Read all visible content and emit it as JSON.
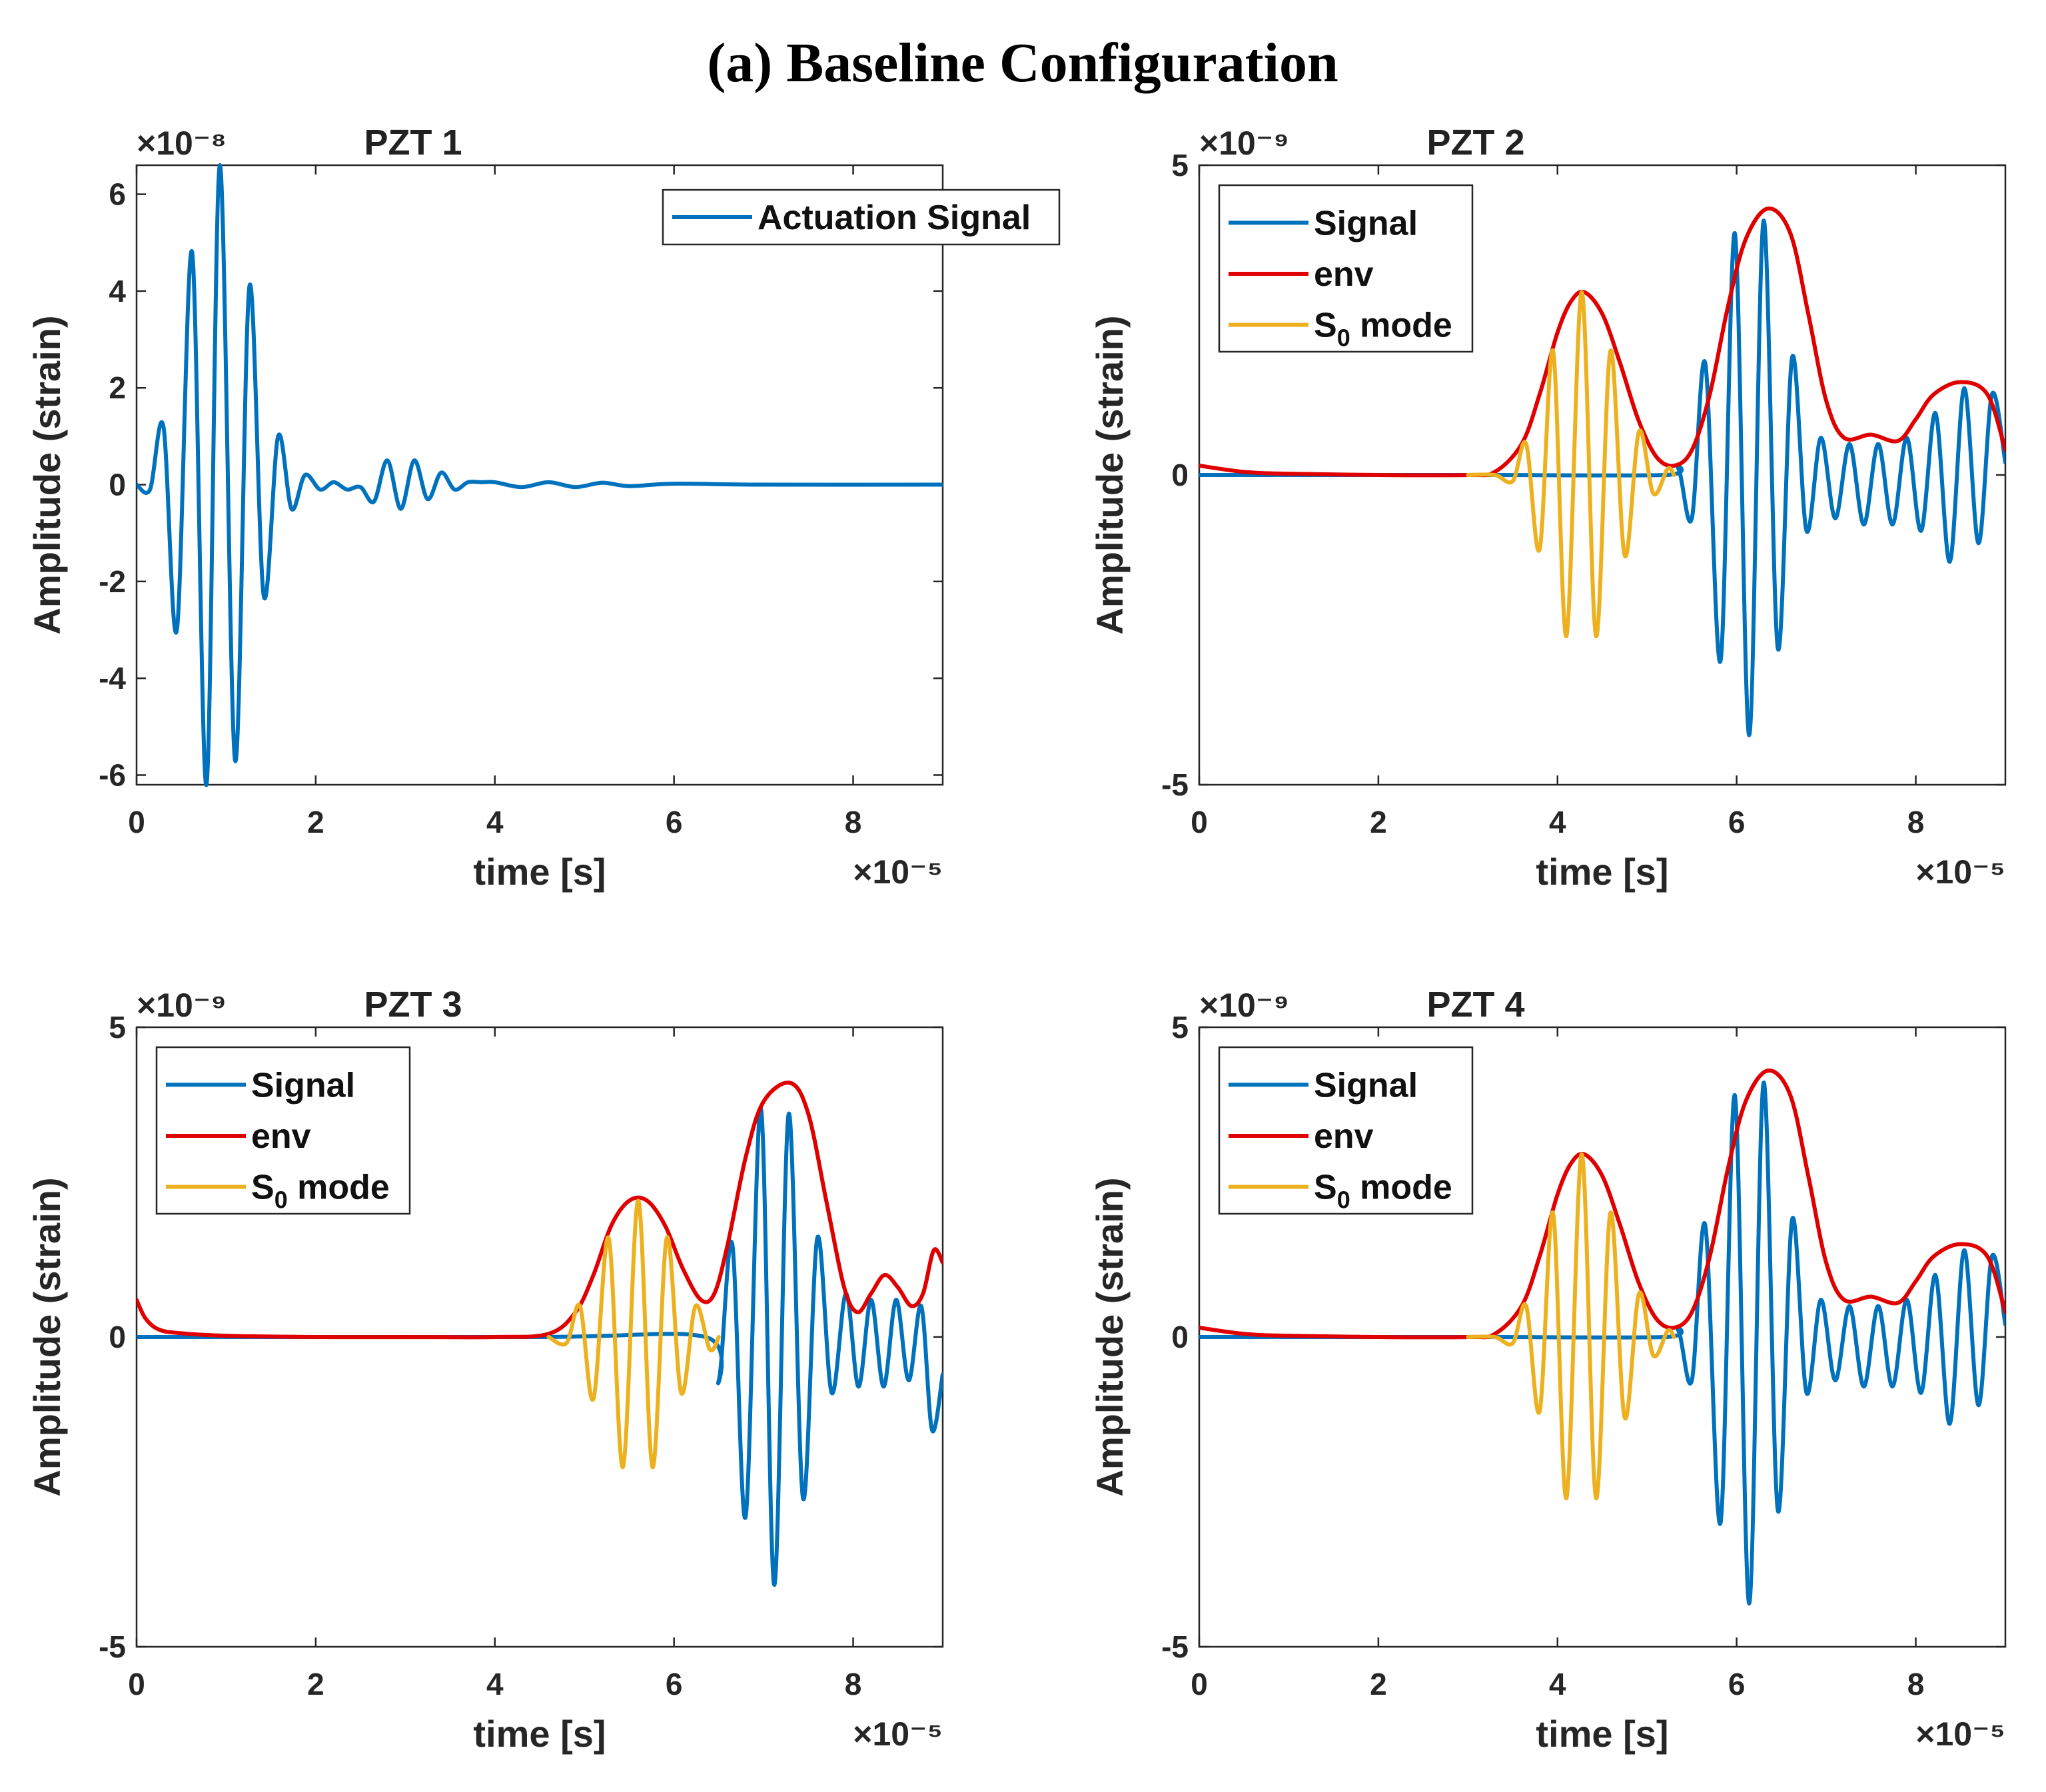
{
  "figure_title": "(a) Baseline Configuration",
  "colors": {
    "signal": "#0072BD",
    "env": "#E00000",
    "s0": "#EDB120",
    "axis": "#262626"
  },
  "chart_data": [
    {
      "type": "line",
      "title": "PZT 1",
      "xlabel": "time [s]",
      "ylabel": "Amplitude (strain)",
      "x_multiplier": "×10⁻⁵",
      "y_multiplier": "×10⁻⁸",
      "xlim": [
        0,
        9
      ],
      "ylim": [
        -6.2,
        6.6
      ],
      "xticks": [
        0,
        2,
        4,
        6,
        8
      ],
      "yticks": [
        -6,
        -4,
        -2,
        0,
        2,
        4,
        6
      ],
      "legend": {
        "position": "top-right",
        "entries": [
          "Actuation Signal"
        ]
      },
      "series": [
        {
          "name": "Actuation Signal",
          "color": "signal",
          "x": [
            0,
            0.15,
            0.3,
            0.45,
            0.62,
            0.78,
            0.93,
            1.1,
            1.26,
            1.42,
            1.58,
            1.73,
            1.88,
            2.05,
            2.2,
            2.35,
            2.5,
            2.65,
            2.8,
            2.95,
            3.1,
            3.25,
            3.4,
            3.55,
            3.7,
            3.85,
            4.0,
            4.3,
            4.6,
            4.9,
            5.2,
            5.5,
            6.0,
            7.0,
            9.0
          ],
          "y": [
            0.0,
            -0.1,
            1.2,
            -3.0,
            4.8,
            -6.2,
            6.6,
            -5.7,
            4.1,
            -2.3,
            1.0,
            -0.5,
            0.2,
            -0.1,
            0.05,
            -0.1,
            -0.05,
            -0.35,
            0.5,
            -0.5,
            0.5,
            -0.3,
            0.25,
            -0.1,
            0.05,
            0.05,
            0.05,
            -0.05,
            0.05,
            -0.05,
            0.04,
            -0.03,
            0.02,
            0.0,
            0.0
          ]
        }
      ]
    },
    {
      "type": "line",
      "title": "PZT 2",
      "xlabel": "time [s]",
      "ylabel": "Amplitude (strain)",
      "x_multiplier": "×10⁻⁵",
      "y_multiplier": "×10⁻⁹",
      "xlim": [
        0,
        9
      ],
      "ylim": [
        -5,
        5
      ],
      "xticks": [
        0,
        2,
        4,
        6,
        8
      ],
      "yticks": [
        -5,
        0,
        5
      ],
      "legend": {
        "position": "top-left",
        "entries": [
          "Signal",
          "env",
          "S0 mode"
        ]
      },
      "series": [
        {
          "name": "Signal",
          "color": "signal",
          "x": [
            0,
            3.0,
            3.3,
            5.2,
            5.35,
            5.5,
            5.65,
            5.82,
            5.98,
            6.14,
            6.3,
            6.46,
            6.62,
            6.78,
            6.94,
            7.1,
            7.26,
            7.42,
            7.58,
            7.74,
            7.9,
            8.06,
            8.22,
            8.38,
            8.54,
            8.7,
            8.85,
            9.0
          ],
          "y": [
            0.0,
            0.0,
            0.0,
            0.0,
            0.1,
            -0.7,
            1.8,
            -3.0,
            3.9,
            -4.2,
            4.1,
            -2.8,
            1.9,
            -0.9,
            0.6,
            -0.7,
            0.5,
            -0.8,
            0.5,
            -0.8,
            0.6,
            -0.9,
            1.0,
            -1.4,
            1.4,
            -1.1,
            1.3,
            0.2
          ]
        },
        {
          "name": "env",
          "color": "env",
          "x": [
            0,
            0.5,
            1.0,
            2.0,
            3.0,
            3.3,
            3.6,
            3.8,
            4.0,
            4.15,
            4.3,
            4.5,
            4.7,
            4.9,
            5.1,
            5.3,
            5.5,
            5.7,
            5.9,
            6.1,
            6.35,
            6.6,
            6.8,
            7.0,
            7.2,
            7.5,
            7.8,
            8.0,
            8.2,
            8.5,
            8.8,
            9.0
          ],
          "y": [
            0.15,
            0.05,
            0.02,
            0.0,
            0.0,
            0.05,
            0.5,
            1.3,
            2.3,
            2.8,
            2.95,
            2.6,
            1.8,
            0.9,
            0.3,
            0.15,
            0.4,
            1.3,
            2.7,
            3.8,
            4.3,
            3.9,
            2.6,
            1.2,
            0.6,
            0.65,
            0.55,
            0.9,
            1.3,
            1.5,
            1.3,
            0.4
          ]
        },
        {
          "name": "S0 mode",
          "color": "s0",
          "x": [
            3.0,
            3.3,
            3.5,
            3.65,
            3.8,
            3.95,
            4.1,
            4.27,
            4.43,
            4.59,
            4.75,
            4.91,
            5.07,
            5.23,
            5.3
          ],
          "y": [
            0.0,
            0.0,
            -0.1,
            0.5,
            -1.2,
            2.0,
            -2.6,
            2.95,
            -2.6,
            2.0,
            -1.3,
            0.7,
            -0.3,
            0.1,
            0.0
          ]
        }
      ]
    },
    {
      "type": "line",
      "title": "PZT 3",
      "xlabel": "time [s]",
      "ylabel": "Amplitude (strain)",
      "x_multiplier": "×10⁻⁵",
      "y_multiplier": "×10⁻⁹",
      "xlim": [
        0,
        9
      ],
      "ylim": [
        -5,
        5
      ],
      "xticks": [
        0,
        2,
        4,
        6,
        8
      ],
      "yticks": [
        -5,
        0,
        5
      ],
      "legend": {
        "position": "top-left",
        "entries": [
          "Signal",
          "env",
          "S0 mode"
        ]
      },
      "series": [
        {
          "name": "Signal",
          "color": "signal",
          "x": [
            0,
            4.5,
            6.35,
            6.5,
            6.65,
            6.8,
            6.97,
            7.12,
            7.28,
            7.44,
            7.6,
            7.76,
            7.92,
            8.06,
            8.2,
            8.34,
            8.48,
            8.62,
            8.76,
            8.88,
            9.0
          ],
          "y": [
            0.0,
            0.0,
            0.0,
            -0.7,
            1.5,
            -2.9,
            3.7,
            -4.0,
            3.6,
            -2.6,
            1.6,
            -0.9,
            0.7,
            -0.8,
            0.6,
            -0.8,
            0.6,
            -0.7,
            0.5,
            -1.5,
            -0.6
          ]
        },
        {
          "name": "env",
          "color": "env",
          "x": [
            0,
            0.1,
            0.25,
            0.5,
            1.0,
            2.0,
            3.0,
            4.0,
            4.6,
            4.9,
            5.1,
            5.3,
            5.5,
            5.7,
            5.9,
            6.1,
            6.3,
            6.45,
            6.6,
            6.8,
            7.0,
            7.3,
            7.5,
            7.7,
            7.9,
            8.05,
            8.2,
            8.35,
            8.5,
            8.65,
            8.78,
            8.9,
            9.0
          ],
          "y": [
            0.6,
            0.3,
            0.12,
            0.06,
            0.02,
            0.0,
            0.0,
            0.0,
            0.05,
            0.4,
            1.0,
            1.8,
            2.2,
            2.2,
            1.8,
            1.1,
            0.6,
            0.7,
            1.5,
            2.9,
            3.8,
            4.1,
            3.6,
            2.2,
            0.8,
            0.4,
            0.7,
            1.0,
            0.8,
            0.5,
            0.7,
            1.4,
            1.2
          ]
        },
        {
          "name": "S0 mode",
          "color": "s0",
          "x": [
            4.6,
            4.8,
            4.95,
            5.1,
            5.27,
            5.43,
            5.6,
            5.76,
            5.92,
            6.08,
            6.24,
            6.4,
            6.5
          ],
          "y": [
            0.0,
            -0.1,
            0.5,
            -1.0,
            1.6,
            -2.1,
            2.2,
            -2.1,
            1.6,
            -0.9,
            0.5,
            -0.2,
            0.0
          ]
        }
      ]
    },
    {
      "type": "line",
      "title": "PZT 4",
      "xlabel": "time [s]",
      "ylabel": "Amplitude (strain)",
      "x_multiplier": "×10⁻⁵",
      "y_multiplier": "×10⁻⁹",
      "xlim": [
        0,
        9
      ],
      "ylim": [
        -5,
        5
      ],
      "xticks": [
        0,
        2,
        4,
        6,
        8
      ],
      "yticks": [
        -5,
        0,
        5
      ],
      "legend": {
        "position": "top-left",
        "entries": [
          "Signal",
          "env",
          "S0 mode"
        ]
      },
      "series": [
        {
          "name": "Signal",
          "color": "signal",
          "x": [
            0,
            3.0,
            3.3,
            5.2,
            5.35,
            5.5,
            5.65,
            5.82,
            5.98,
            6.14,
            6.3,
            6.46,
            6.62,
            6.78,
            6.94,
            7.1,
            7.26,
            7.42,
            7.58,
            7.74,
            7.9,
            8.06,
            8.22,
            8.38,
            8.54,
            8.7,
            8.85,
            9.0
          ],
          "y": [
            0.0,
            0.0,
            0.0,
            0.0,
            0.1,
            -0.7,
            1.8,
            -3.0,
            3.9,
            -4.3,
            4.1,
            -2.8,
            1.9,
            -0.9,
            0.6,
            -0.7,
            0.5,
            -0.8,
            0.5,
            -0.8,
            0.6,
            -0.9,
            1.0,
            -1.4,
            1.4,
            -1.1,
            1.3,
            0.2
          ]
        },
        {
          "name": "env",
          "color": "env",
          "x": [
            0,
            0.5,
            1.0,
            2.0,
            3.0,
            3.3,
            3.6,
            3.8,
            4.0,
            4.15,
            4.3,
            4.5,
            4.7,
            4.9,
            5.1,
            5.3,
            5.5,
            5.7,
            5.9,
            6.1,
            6.35,
            6.6,
            6.8,
            7.0,
            7.2,
            7.5,
            7.8,
            8.0,
            8.2,
            8.5,
            8.8,
            9.0
          ],
          "y": [
            0.15,
            0.05,
            0.02,
            0.0,
            0.0,
            0.05,
            0.5,
            1.3,
            2.3,
            2.8,
            2.95,
            2.6,
            1.8,
            0.9,
            0.3,
            0.15,
            0.4,
            1.3,
            2.7,
            3.8,
            4.3,
            3.9,
            2.6,
            1.2,
            0.6,
            0.65,
            0.55,
            0.9,
            1.3,
            1.5,
            1.3,
            0.4
          ]
        },
        {
          "name": "S0 mode",
          "color": "s0",
          "x": [
            3.0,
            3.3,
            3.5,
            3.65,
            3.8,
            3.95,
            4.1,
            4.27,
            4.43,
            4.59,
            4.75,
            4.91,
            5.07,
            5.23,
            5.3
          ],
          "y": [
            0.0,
            0.0,
            -0.1,
            0.5,
            -1.2,
            2.0,
            -2.6,
            2.95,
            -2.6,
            2.0,
            -1.3,
            0.7,
            -0.3,
            0.1,
            0.0
          ]
        }
      ]
    }
  ]
}
